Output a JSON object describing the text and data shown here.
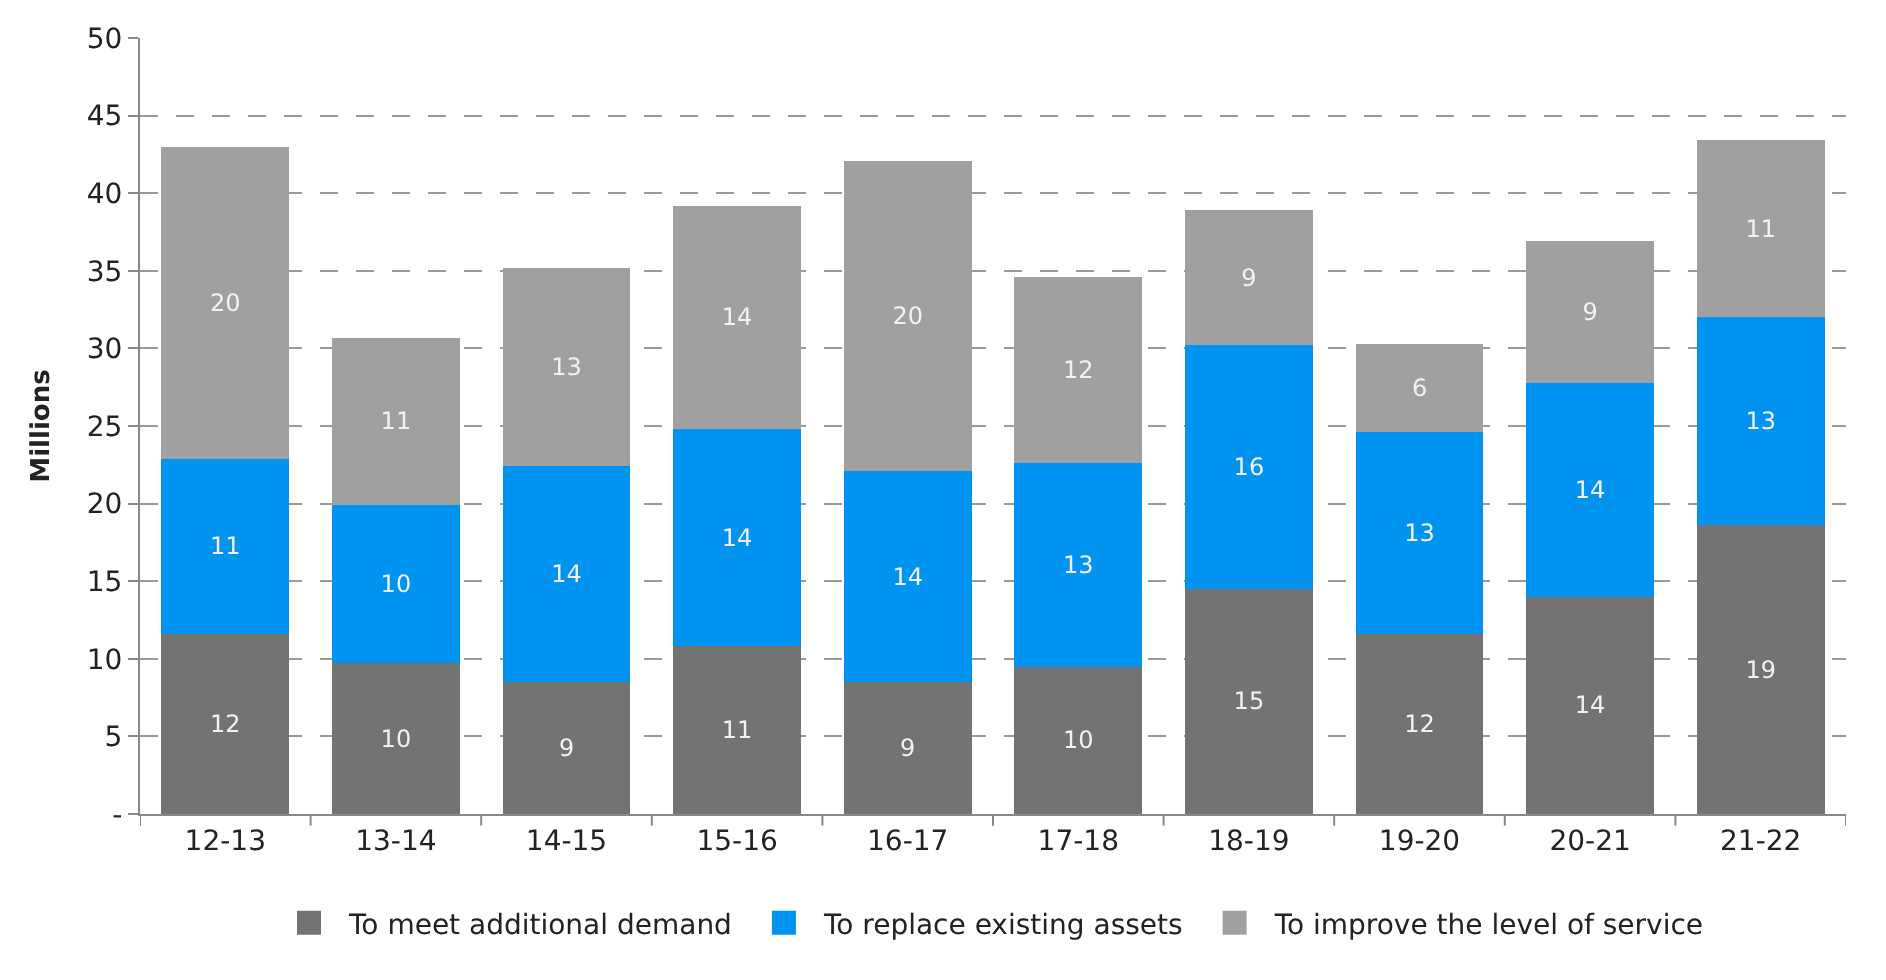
{
  "chart_data": {
    "type": "bar",
    "stacked": true,
    "ylabel": "Millions",
    "categories": [
      "12-13",
      "13-14",
      "14-15",
      "15-16",
      "16-17",
      "17-18",
      "18-19",
      "19-20",
      "20-21",
      "21-22"
    ],
    "series": [
      {
        "name": "To meet additional demand",
        "color": "#737373",
        "values": [
          11.6,
          9.7,
          8.5,
          10.8,
          8.5,
          9.5,
          14.5,
          11.6,
          14.0,
          18.6
        ],
        "value_labels": [
          "12",
          "10",
          "9",
          "11",
          "9",
          "10",
          "15",
          "12",
          "14",
          "19"
        ]
      },
      {
        "name": "To replace existing assets",
        "color": "#0093f0",
        "values": [
          11.3,
          10.2,
          13.9,
          14.0,
          13.6,
          13.1,
          15.7,
          13.0,
          13.8,
          13.4
        ],
        "value_labels": [
          "11",
          "10",
          "14",
          "14",
          "14",
          "13",
          "16",
          "13",
          "14",
          "13"
        ]
      },
      {
        "name": "To improve the level of service",
        "color": "#a0a0a0",
        "values": [
          20.1,
          10.8,
          12.8,
          14.4,
          20.0,
          12.0,
          8.7,
          5.7,
          9.1,
          11.4
        ],
        "value_labels": [
          "20",
          "11",
          "13",
          "14",
          "20",
          "12",
          "9",
          "6",
          "9",
          "11"
        ]
      }
    ],
    "ylim": [
      0,
      50
    ],
    "yticks": [
      {
        "value": 0,
        "label": "-"
      },
      5,
      10,
      15,
      20,
      25,
      30,
      35,
      40,
      45,
      50
    ],
    "grid": "y",
    "legend": "bottom"
  }
}
